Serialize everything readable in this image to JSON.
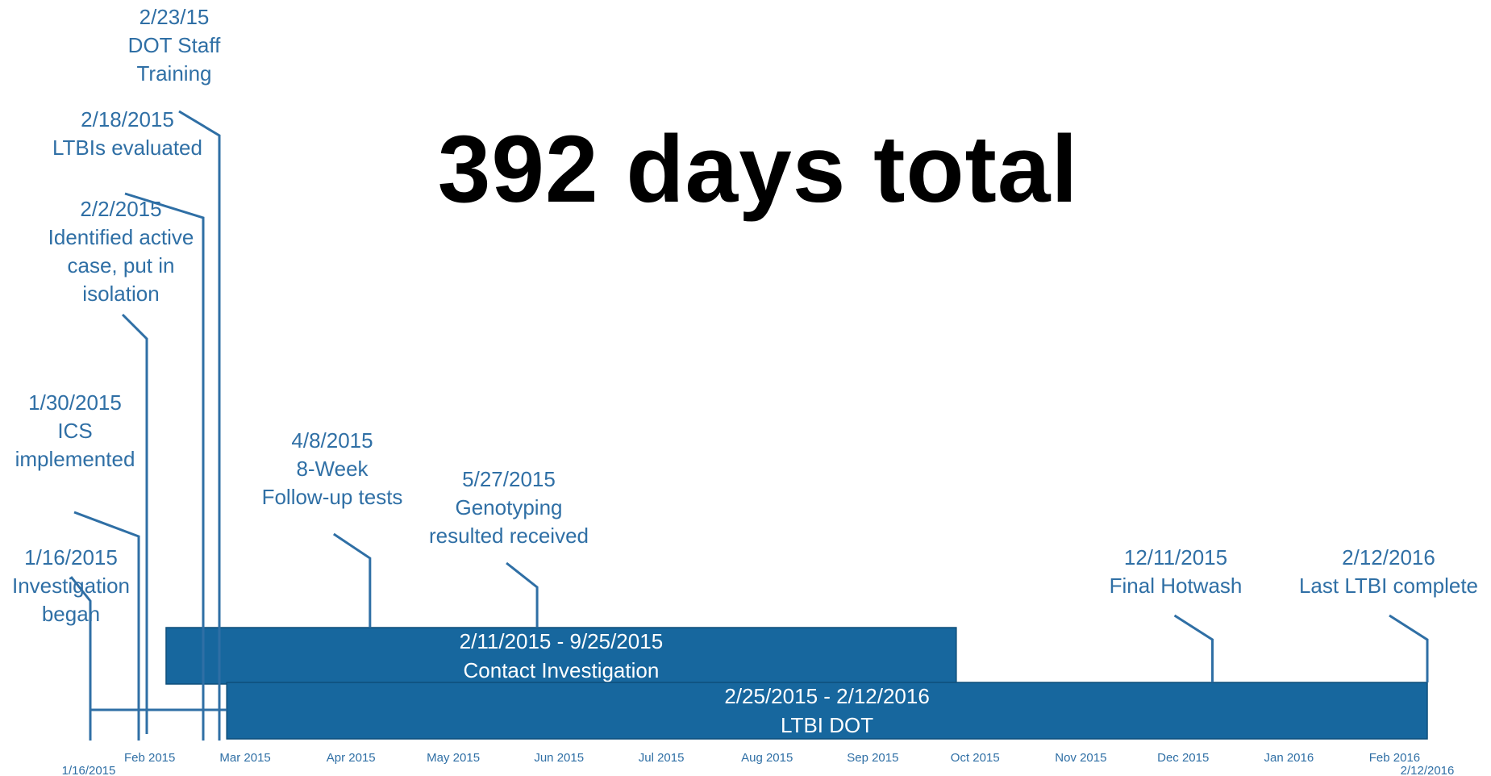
{
  "headline": "392 days total",
  "colors": {
    "line": "#2f6fa5",
    "bar": "#17679e",
    "bar_text": "#ffffff",
    "label": "#2f6fa5"
  },
  "timeline": {
    "start": "1/16/2015",
    "end": "2/12/2016",
    "start_label": "1/16/2015",
    "end_label": "2/12/2016",
    "months": [
      {
        "date": "2015-02-01",
        "label": "Feb 2015"
      },
      {
        "date": "2015-03-01",
        "label": "Mar 2015"
      },
      {
        "date": "2015-04-01",
        "label": "Apr 2015"
      },
      {
        "date": "2015-05-01",
        "label": "May 2015"
      },
      {
        "date": "2015-06-01",
        "label": "Jun 2015"
      },
      {
        "date": "2015-07-01",
        "label": "Jul 2015"
      },
      {
        "date": "2015-08-01",
        "label": "Aug 2015"
      },
      {
        "date": "2015-09-01",
        "label": "Sep 2015"
      },
      {
        "date": "2015-10-01",
        "label": "Oct 2015"
      },
      {
        "date": "2015-11-01",
        "label": "Nov 2015"
      },
      {
        "date": "2015-12-01",
        "label": "Dec 2015"
      },
      {
        "date": "2016-01-01",
        "label": "Jan 2016"
      },
      {
        "date": "2016-02-01",
        "label": "Feb 2016"
      }
    ]
  },
  "bars": [
    {
      "id": "contact-investigation",
      "start": "2015-02-11",
      "end": "2015-09-25",
      "lines": [
        "2/11/2015 - 9/25/2015",
        "Contact Investigation"
      ]
    },
    {
      "id": "ltbi-dot",
      "start": "2015-02-25",
      "end": "2016-02-12",
      "lines": [
        "2/25/2015 - 2/12/2016",
        "LTBI DOT"
      ]
    }
  ],
  "milestones": [
    {
      "id": "investigation-began",
      "date": "2015-01-16",
      "lines": [
        "1/16/2015",
        "Investigation",
        "began"
      ]
    },
    {
      "id": "ics-implemented",
      "date": "2015-01-30",
      "lines": [
        "1/30/2015",
        "ICS",
        "implemented"
      ]
    },
    {
      "id": "active-case-identified",
      "date": "2015-02-02",
      "lines": [
        "2/2/2015",
        "Identified active",
        "case, put in",
        "isolation"
      ]
    },
    {
      "id": "ltbis-evaluated",
      "date": "2015-02-18",
      "lines": [
        "2/18/2015",
        "LTBIs evaluated"
      ]
    },
    {
      "id": "dot-staff-training",
      "date": "2015-02-23",
      "lines": [
        "2/23/15",
        "DOT Staff",
        "Training"
      ]
    },
    {
      "id": "follow-up-tests",
      "date": "2015-04-08",
      "lines": [
        "4/8/2015",
        "8-Week",
        "Follow-up tests"
      ]
    },
    {
      "id": "genotyping-received",
      "date": "2015-05-27",
      "lines": [
        "5/27/2015",
        "Genotyping",
        "resulted received"
      ]
    },
    {
      "id": "final-hotwash",
      "date": "2015-12-11",
      "lines": [
        "12/11/2015",
        "Final Hotwash"
      ]
    },
    {
      "id": "last-ltbi-complete",
      "date": "2016-02-12",
      "lines": [
        "2/12/2016",
        "Last LTBI complete"
      ]
    }
  ]
}
